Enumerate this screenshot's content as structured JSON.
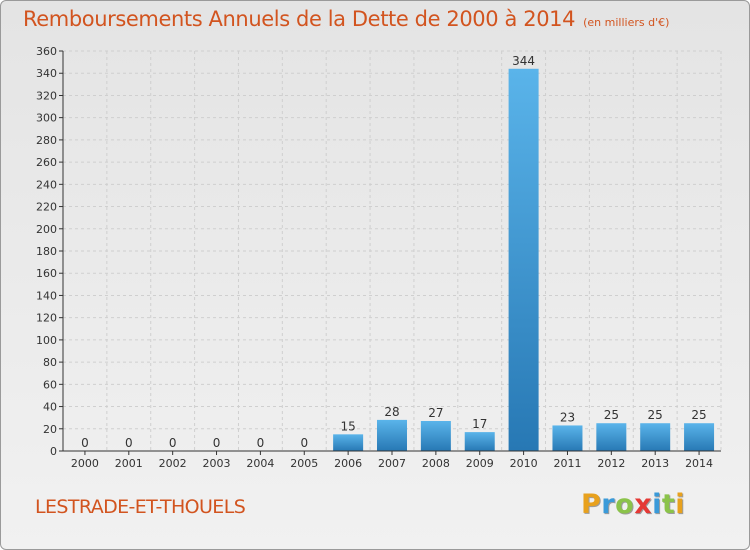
{
  "header": {
    "title": "Remboursements Annuels de la Dette de 2000 à 2014",
    "unit": "(en milliers d'€)"
  },
  "footer": {
    "commune": "LESTRADE-ET-THOUELS",
    "logo_letters": [
      "P",
      "r",
      "o",
      "x",
      "i",
      "t",
      "i"
    ],
    "logo_colors": [
      "#e8a11d",
      "#3a9ad9",
      "#8bc34a",
      "#e53935",
      "#3a9ad9",
      "#8bc34a",
      "#e8a11d"
    ]
  },
  "chart_data": {
    "type": "bar",
    "title": "Remboursements Annuels de la Dette de 2000 à 2014",
    "xlabel": "",
    "ylabel": "",
    "categories": [
      "2000",
      "2001",
      "2002",
      "2003",
      "2004",
      "2005",
      "2006",
      "2007",
      "2008",
      "2009",
      "2010",
      "2011",
      "2012",
      "2013",
      "2014"
    ],
    "values": [
      0,
      0,
      0,
      0,
      0,
      0,
      15,
      28,
      27,
      17,
      344,
      23,
      25,
      25,
      25
    ],
    "ylim": [
      0,
      360
    ],
    "yticks": [
      0,
      20,
      40,
      60,
      80,
      100,
      120,
      140,
      160,
      180,
      200,
      220,
      240,
      260,
      280,
      300,
      320,
      340,
      360
    ],
    "grid": true,
    "colors": {
      "bar_top": "#5ab4ea",
      "bar_bottom": "#2778b4",
      "grid": "#cfcfcf",
      "axis": "#333333",
      "text": "#333333"
    }
  }
}
